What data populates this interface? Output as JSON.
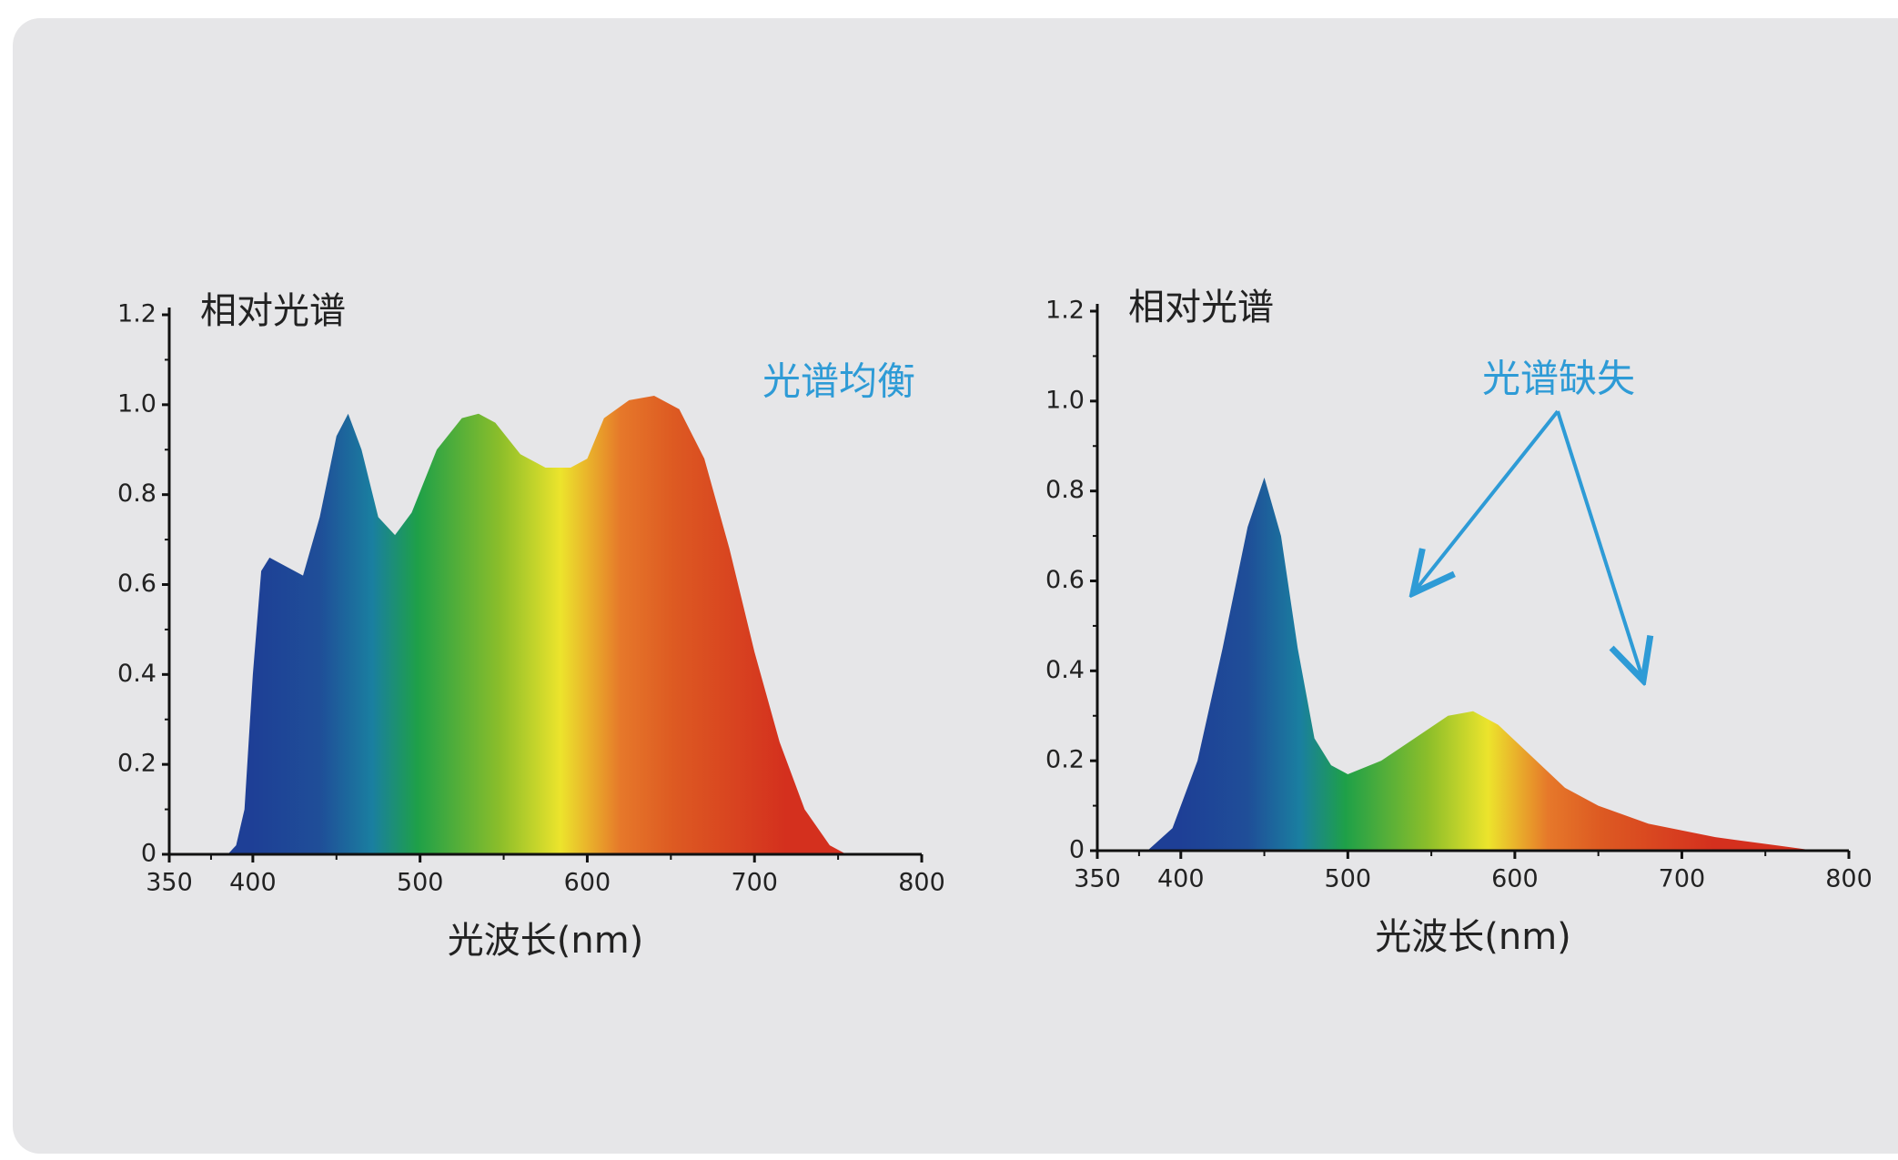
{
  "chart_data": [
    {
      "type": "area",
      "title": "相对光谱",
      "xlabel": "光波长(nm)",
      "annotation": "光谱均衡",
      "x": [
        385,
        390,
        395,
        400,
        405,
        410,
        420,
        430,
        440,
        450,
        457,
        465,
        475,
        485,
        495,
        510,
        525,
        535,
        545,
        560,
        575,
        590,
        600,
        610,
        625,
        640,
        655,
        670,
        685,
        700,
        715,
        730,
        745,
        755
      ],
      "values": [
        0,
        0.02,
        0.1,
        0.4,
        0.63,
        0.66,
        0.64,
        0.62,
        0.75,
        0.93,
        0.98,
        0.9,
        0.75,
        0.71,
        0.76,
        0.9,
        0.97,
        0.98,
        0.96,
        0.89,
        0.86,
        0.86,
        0.88,
        0.97,
        1.01,
        1.02,
        0.99,
        0.88,
        0.68,
        0.45,
        0.25,
        0.1,
        0.02,
        0
      ],
      "xlim": [
        350,
        800
      ],
      "xticks": [
        350,
        400,
        500,
        600,
        700,
        800
      ],
      "ylim": [
        0,
        1.2
      ],
      "yticks": [
        0,
        0.2,
        0.4,
        0.6,
        0.8,
        {
          "value": 1,
          "label": "1.0"
        },
        1.2
      ]
    },
    {
      "type": "area",
      "title": "相对光谱",
      "xlabel": "光波长(nm)",
      "annotation": "光谱缺失",
      "x": [
        380,
        395,
        410,
        425,
        440,
        450,
        460,
        470,
        480,
        490,
        500,
        520,
        540,
        560,
        575,
        590,
        610,
        630,
        650,
        680,
        720,
        760,
        780
      ],
      "values": [
        0,
        0.05,
        0.2,
        0.45,
        0.72,
        0.83,
        0.7,
        0.45,
        0.25,
        0.19,
        0.17,
        0.2,
        0.25,
        0.3,
        0.31,
        0.28,
        0.21,
        0.14,
        0.1,
        0.06,
        0.03,
        0.01,
        0
      ],
      "xlim": [
        350,
        800
      ],
      "xticks": [
        350,
        400,
        500,
        600,
        700,
        800
      ],
      "ylim": [
        0,
        1.2
      ],
      "yticks": [
        0,
        0.2,
        0.4,
        0.6,
        0.8,
        {
          "value": 1,
          "label": "1.0"
        },
        1.2
      ]
    }
  ]
}
